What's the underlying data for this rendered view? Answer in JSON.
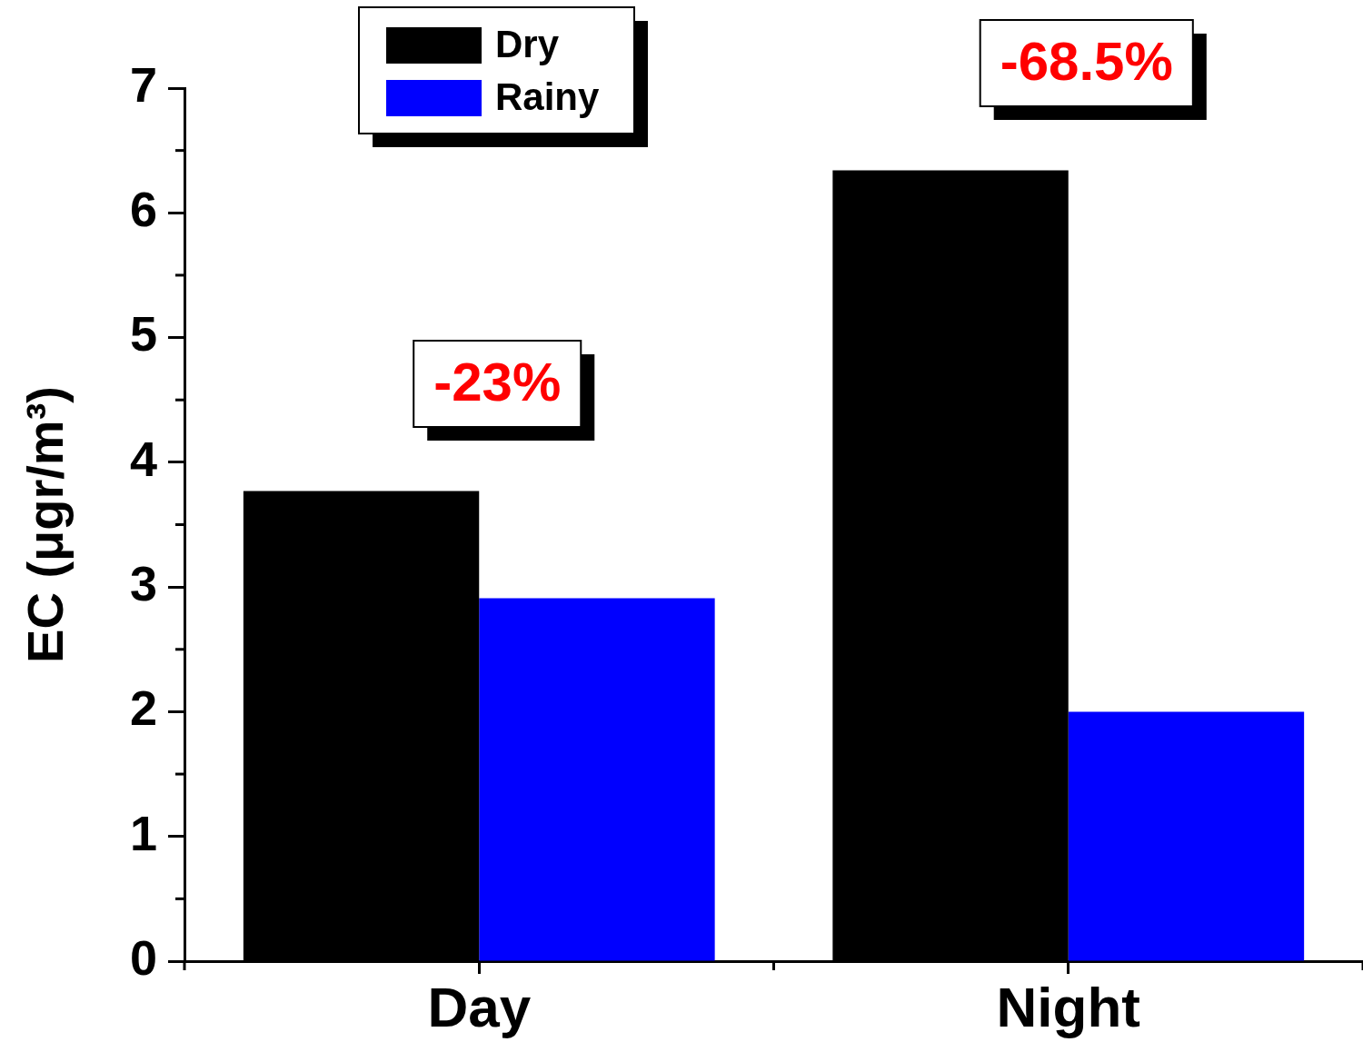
{
  "chart_data": {
    "type": "bar",
    "ylabel": "EC (μgr/m³)",
    "categories": [
      "Day",
      "Night"
    ],
    "series": [
      {
        "name": "Dry",
        "color": "#000000",
        "values": [
          3.77,
          6.34
        ]
      },
      {
        "name": "Rainy",
        "color": "#0000ff",
        "values": [
          2.91,
          2.0
        ]
      }
    ],
    "ylim": [
      0,
      7
    ],
    "yticks": [
      0,
      1,
      2,
      3,
      4,
      5,
      6,
      7
    ],
    "grid": false,
    "legend": "top left",
    "annotations": [
      "-23%",
      "-68.5%"
    ]
  }
}
